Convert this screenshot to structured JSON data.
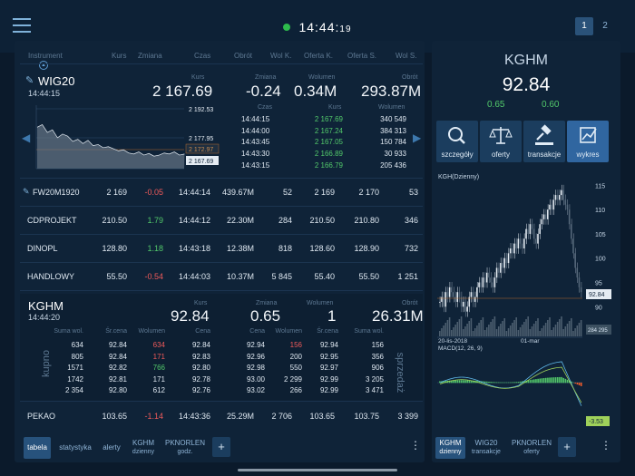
{
  "clock": {
    "time": "14:44:",
    "seconds": "19"
  },
  "pages": [
    "1",
    "2"
  ],
  "table_header": {
    "instrument": "Instrument",
    "kurs": "Kurs",
    "zmiana": "Zmiana",
    "czas": "Czas",
    "obrot": "Obrót",
    "wolk": "Wol K.",
    "ofertak": "Oferta K.",
    "ofertas": "Oferta S.",
    "wols": "Wol S."
  },
  "wig20": {
    "name": "WIG20",
    "time": "14:44:15",
    "kurs_label": "Kurs",
    "kurs": "2 167.69",
    "zmiana_label": "Zmiana",
    "zmiana": "-0.24",
    "wolumen_label": "Wolumen",
    "wolumen": "0.34M",
    "obrot_label": "Obrót",
    "obrot": "293.87M",
    "chart_labels": [
      "2 192.53",
      "2 177.95",
      "2 172.97",
      "2 167.69"
    ],
    "trades_header": {
      "czas": "Czas",
      "kurs": "Kurs",
      "wolumen": "Wolumen"
    },
    "trades": [
      [
        "14:44:15",
        "2 167.69",
        "340 549"
      ],
      [
        "14:44:00",
        "2 167.24",
        "384 313"
      ],
      [
        "14:43:45",
        "2 167.05",
        "150 784"
      ],
      [
        "14:43:30",
        "2 166.89",
        "30 933"
      ],
      [
        "14:43:15",
        "2 166.79",
        "205 436"
      ]
    ]
  },
  "rows": [
    {
      "name": "FW20M1920",
      "kurs": "2 169",
      "zmiana": "-0.05",
      "czas": "14:44:14",
      "obrot": "439.67M",
      "wolk": "52",
      "ofertak": "2 169",
      "ofertas": "2 170",
      "wols": "53"
    },
    {
      "name": "CDPROJEKT",
      "kurs": "210.50",
      "zmiana": "1.79",
      "czas": "14:44:12",
      "obrot": "22.30M",
      "wolk": "284",
      "ofertak": "210.50",
      "ofertas": "210.80",
      "wols": "346"
    },
    {
      "name": "DINOPL",
      "kurs": "128.80",
      "zmiana": "1.18",
      "czas": "14:43:18",
      "obrot": "12.38M",
      "wolk": "818",
      "ofertak": "128.60",
      "ofertas": "128.90",
      "wols": "732"
    },
    {
      "name": "HANDLOWY",
      "kurs": "55.50",
      "zmiana": "-0.54",
      "czas": "14:44:03",
      "obrot": "10.37M",
      "wolk": "5 845",
      "ofertak": "55.40",
      "ofertas": "55.50",
      "wols": "1 251"
    }
  ],
  "kghm_detail": {
    "name": "KGHM",
    "time": "14:44:20",
    "kurs_label": "Kurs",
    "kurs": "92.84",
    "zmiana_label": "Zmiana",
    "zmiana": "0.65",
    "wolumen_label": "Wolumen",
    "wolumen": "1",
    "obrot_label": "Obrót",
    "obrot": "26.31M",
    "buy_label": "kupno",
    "sell_label": "sprzedaż",
    "buy_header": [
      "Suma wol.",
      "Śr.cena",
      "Wolumen",
      "Cena"
    ],
    "sell_header": [
      "Cena",
      "Wolumen",
      "Śr.cena",
      "Suma wol."
    ],
    "buy": [
      [
        "634",
        "92.84",
        "634",
        "92.84"
      ],
      [
        "805",
        "92.84",
        "171",
        "92.83"
      ],
      [
        "1571",
        "92.82",
        "766",
        "92.80"
      ],
      [
        "1742",
        "92.81",
        "171",
        "92.78"
      ],
      [
        "2 354",
        "92.80",
        "612",
        "92.76"
      ]
    ],
    "sell": [
      [
        "92.94",
        "156",
        "92.94",
        "156"
      ],
      [
        "92.96",
        "200",
        "92.95",
        "356"
      ],
      [
        "92.98",
        "550",
        "92.97",
        "906"
      ],
      [
        "93.00",
        "2 299",
        "92.99",
        "3 205"
      ],
      [
        "93.02",
        "266",
        "92.99",
        "3 471"
      ]
    ]
  },
  "pekao": {
    "name": "PEKAO",
    "kurs": "103.65",
    "zmiana": "-1.14",
    "czas": "14:43:36",
    "obrot": "25.29M",
    "wolk": "2 706",
    "ofertak": "103.65",
    "ofertas": "103.75",
    "wols": "3 399"
  },
  "bottom_tabs": [
    {
      "label": "tabela"
    },
    {
      "label": "statystyka"
    },
    {
      "label": "alerty"
    },
    {
      "label": "KGHM",
      "sub": "dzienny"
    },
    {
      "label": "PKNORLEN",
      "sub": "godz."
    }
  ],
  "right": {
    "title": "KGHM",
    "price": "92.84",
    "val1": "0.65",
    "val2": "0.60",
    "actions": [
      "szczegóły",
      "oferty",
      "transakcje",
      "wykres"
    ],
    "chart_title": "KGH(Dzienny)",
    "y_ticks": [
      "115",
      "110",
      "105",
      "100",
      "95",
      "90"
    ],
    "price_tag": "92.84",
    "vol_tag": "284 295",
    "x_labels": [
      "20-lis-2018",
      "01-mar"
    ],
    "macd_title": "MACD(12, 26, 9)",
    "macd_tag": "-3.53",
    "tabs": [
      {
        "label": "KGHM",
        "sub": "dzienny"
      },
      {
        "label": "WIG20",
        "sub": "transakcje"
      },
      {
        "label": "PKNORLEN",
        "sub": "oferty"
      }
    ]
  },
  "colors": {
    "up": "#52c86a",
    "down": "#ef5a5a",
    "accent": "#3066a0"
  }
}
